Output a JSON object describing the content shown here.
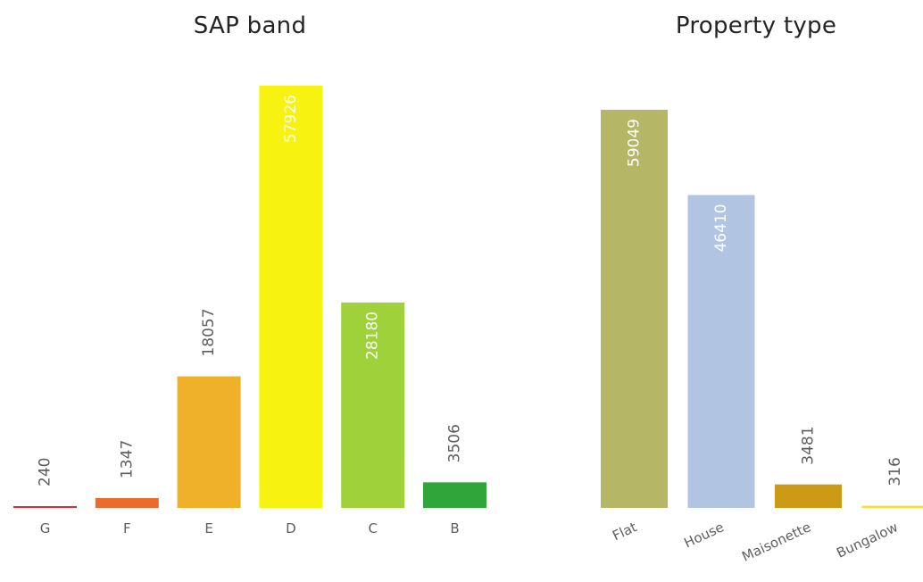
{
  "chart_data": [
    {
      "type": "bar",
      "title": "SAP band",
      "categories": [
        "G",
        "F",
        "E",
        "D",
        "C",
        "B"
      ],
      "values": [
        240,
        1347,
        18057,
        57926,
        28180,
        3506
      ],
      "colors": [
        "#e8272e",
        "#eb6b2d",
        "#f0b12a",
        "#f7f20f",
        "#9fd23a",
        "#2fa53a"
      ],
      "ylim": [
        0,
        57926
      ],
      "grid": false,
      "xlabel": "",
      "ylabel": ""
    },
    {
      "type": "bar",
      "title": "Property type",
      "categories": [
        "Flat",
        "House",
        "Maisonette",
        "Bungalow"
      ],
      "values": [
        59049,
        46410,
        3481,
        316
      ],
      "colors": [
        "#b6b667",
        "#b1c4e2",
        "#cc9a14",
        "#f5de2c"
      ],
      "ylim": [
        0,
        59049
      ],
      "grid": false,
      "xlabel": "",
      "ylabel": ""
    }
  ]
}
